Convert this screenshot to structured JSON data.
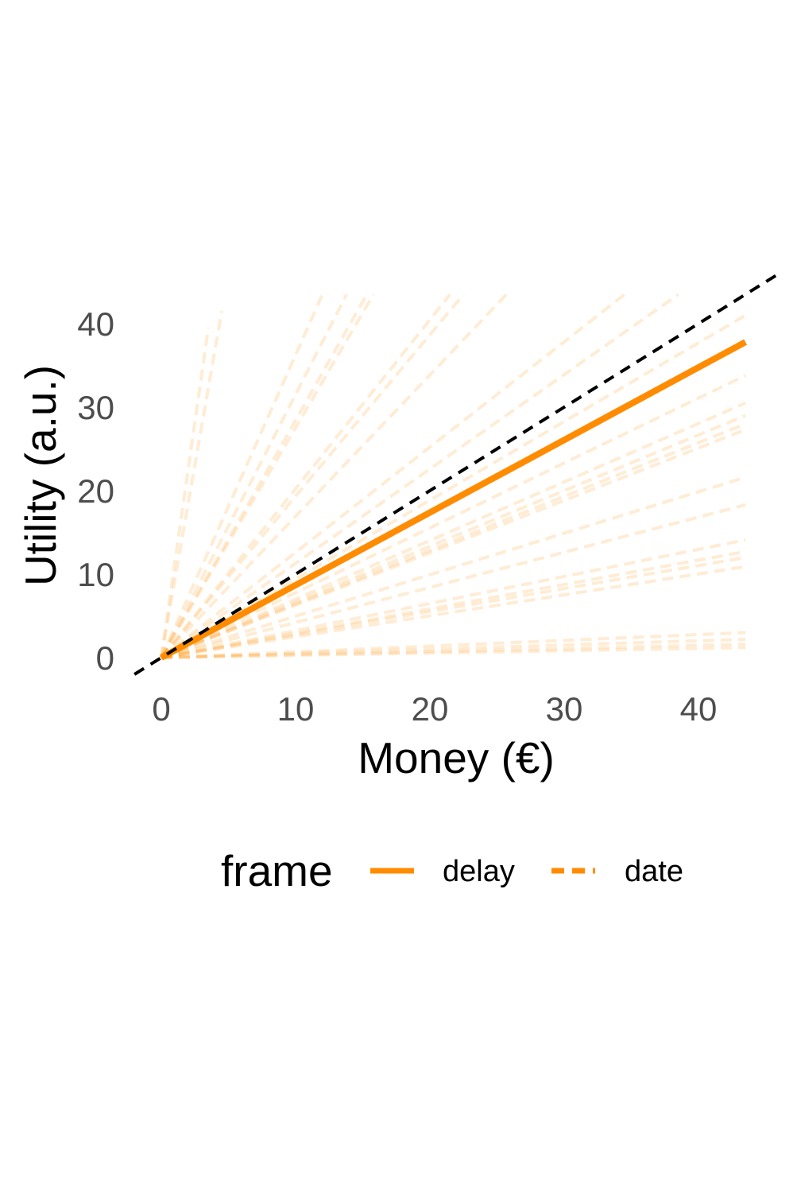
{
  "chart_data": {
    "type": "line",
    "title": "",
    "xlabel": "Money (€)",
    "ylabel": "Utility (a.u.)",
    "xlim": [
      -2,
      46
    ],
    "ylim": [
      -2,
      44
    ],
    "xticks": [
      0,
      10,
      20,
      30,
      40
    ],
    "yticks": [
      0,
      10,
      20,
      30,
      40
    ],
    "grid": false,
    "colors": {
      "accent": "#ff8c00",
      "reference": "#000000"
    },
    "legend": {
      "title": "frame",
      "position": "bottom",
      "entries": [
        {
          "label": "delay",
          "style": "solid"
        },
        {
          "label": "date",
          "style": "dashed"
        }
      ]
    },
    "reference_line": {
      "name": "identity",
      "style": "dashed",
      "x": [
        -2,
        46
      ],
      "y": [
        -2,
        46
      ]
    },
    "series": [
      {
        "name": "delay",
        "style": "solid",
        "x": [
          0,
          43.5
        ],
        "y": [
          0,
          37.8
        ]
      }
    ],
    "individual_curves": {
      "frame": "date",
      "start": [
        0,
        0
      ],
      "endpoints": [
        [
          3.5,
          39.5
        ],
        [
          4.5,
          41.5
        ],
        [
          12,
          43.5
        ],
        [
          13.8,
          43.5
        ],
        [
          15.3,
          43.5
        ],
        [
          15.8,
          43.5
        ],
        [
          21.5,
          43.5
        ],
        [
          22.5,
          43.5
        ],
        [
          25.7,
          43.5
        ],
        [
          34.5,
          43.5
        ],
        [
          38.5,
          43.5
        ],
        [
          43.5,
          41.0
        ],
        [
          43.5,
          33.8
        ],
        [
          43.5,
          30.5
        ],
        [
          43.5,
          29.0
        ],
        [
          43.5,
          28.0
        ],
        [
          43.5,
          27.3
        ],
        [
          43.5,
          21.6
        ],
        [
          43.5,
          18.3
        ],
        [
          43.5,
          14.1
        ],
        [
          43.5,
          12.7
        ],
        [
          43.5,
          12.0
        ],
        [
          43.5,
          10.9
        ],
        [
          43.5,
          3.0
        ],
        [
          43.5,
          2.2
        ],
        [
          43.5,
          1.6
        ],
        [
          43.5,
          1.2
        ]
      ]
    }
  }
}
